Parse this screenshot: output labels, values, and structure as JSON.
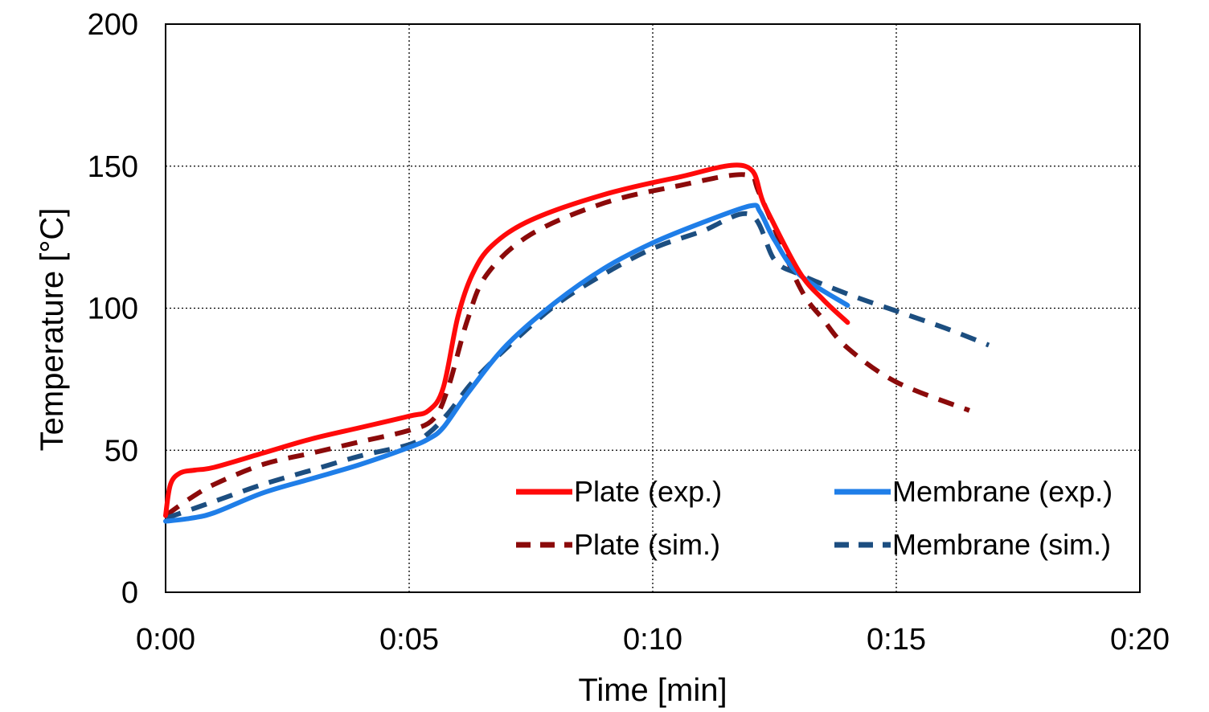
{
  "chart_data": {
    "type": "line",
    "xlabel": "Time [min]",
    "ylabel": "Temperature  [°C]",
    "x_ticks": [
      "0:00",
      "0:05",
      "0:10",
      "0:15",
      "0:20"
    ],
    "y_ticks": [
      "0",
      "50",
      "100",
      "150",
      "200"
    ],
    "xlim": [
      0,
      20
    ],
    "ylim": [
      0,
      200
    ],
    "grid": "dotted",
    "legend_placement": "bottom-right",
    "series": [
      {
        "name": "Plate (exp.)",
        "color": "#ff0a0a",
        "dash": "solid",
        "x": [
          0,
          0.1,
          0.3,
          0.6,
          1.0,
          2.0,
          3.0,
          4.0,
          5.0,
          5.4,
          5.7,
          6.0,
          6.3,
          6.7,
          7.5,
          9.0,
          10.5,
          11.9,
          12.3,
          13.0,
          13.5,
          14.0
        ],
        "y": [
          27,
          38,
          42,
          43,
          44,
          49,
          54,
          58,
          62,
          64,
          72,
          97,
          112,
          122,
          131,
          140,
          146,
          150,
          136,
          113,
          103,
          95
        ]
      },
      {
        "name": "Plate (sim.)",
        "color": "#8b0a0a",
        "dash": "dashed",
        "x": [
          0,
          0.5,
          1.0,
          2.0,
          3.0,
          4.0,
          5.0,
          5.5,
          5.8,
          6.2,
          6.6,
          7.5,
          9.0,
          10.5,
          11.9,
          12.2,
          13.0,
          13.5,
          14.0,
          15.0,
          16.5
        ],
        "y": [
          27,
          33,
          38,
          45,
          49,
          53,
          57,
          61,
          72,
          96,
          112,
          126,
          137,
          143,
          147,
          140,
          108,
          96,
          86,
          74,
          64
        ]
      },
      {
        "name": "Membrane (exp.)",
        "color": "#1f7ee8",
        "dash": "solid",
        "x": [
          0,
          0.5,
          1.0,
          2.0,
          3.0,
          4.0,
          5.0,
          5.4,
          5.7,
          6.2,
          7.0,
          8.0,
          9.0,
          10.0,
          11.0,
          12.0,
          12.2,
          12.5,
          13.0,
          14.0
        ],
        "y": [
          25,
          26,
          28,
          35,
          40,
          45,
          51,
          54,
          58,
          70,
          87,
          102,
          114,
          123,
          130,
          136,
          134,
          124,
          112,
          101
        ]
      },
      {
        "name": "Membrane (sim.)",
        "color": "#1c4e80",
        "dash": "dashed",
        "x": [
          0,
          0.5,
          1.0,
          2.0,
          3.0,
          4.0,
          5.0,
          5.4,
          5.8,
          6.3,
          7.0,
          8.0,
          9.0,
          10.0,
          11.0,
          12.0,
          12.5,
          13.0,
          14.0,
          15.0,
          16.0,
          16.9
        ],
        "y": [
          26,
          29,
          32,
          38,
          43,
          48,
          52,
          56,
          63,
          74,
          86,
          101,
          112,
          121,
          127,
          133,
          117,
          112,
          105,
          99,
          93,
          87
        ]
      }
    ]
  }
}
